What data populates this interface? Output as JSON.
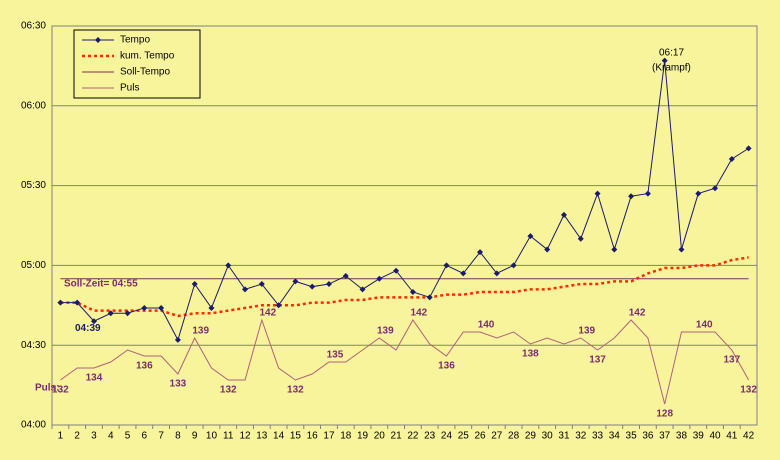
{
  "chart_data": {
    "type": "line",
    "categories": [
      "1",
      "2",
      "3",
      "4",
      "5",
      "6",
      "7",
      "8",
      "9",
      "10",
      "11",
      "12",
      "13",
      "14",
      "15",
      "16",
      "17",
      "18",
      "19",
      "20",
      "21",
      "22",
      "23",
      "24",
      "25",
      "26",
      "27",
      "28",
      "29",
      "30",
      "31",
      "32",
      "33",
      "34",
      "35",
      "36",
      "37",
      "38",
      "39",
      "40",
      "41",
      "42"
    ],
    "ylim": [
      240,
      390
    ],
    "yticks": [
      {
        "value": 240,
        "label": "04:00"
      },
      {
        "value": 270,
        "label": "04:30"
      },
      {
        "value": 300,
        "label": "05:00"
      },
      {
        "value": 330,
        "label": "05:30"
      },
      {
        "value": 360,
        "label": "06:00"
      },
      {
        "value": 390,
        "label": "06:30"
      }
    ],
    "y2lim": [
      124.5,
      191
    ],
    "grid": true,
    "legend": "top-left",
    "series": [
      {
        "name": "Tempo",
        "color": "#1a1a6e",
        "style": "solid-diamond",
        "values": [
          286,
          286,
          279,
          282,
          282,
          284,
          284,
          272,
          293,
          284,
          300,
          291,
          293,
          285,
          294,
          292,
          293,
          296,
          291,
          295,
          298,
          290,
          288,
          300,
          297,
          305,
          297,
          300,
          311,
          306,
          319,
          310,
          327,
          306,
          326,
          327,
          377,
          306,
          327,
          329,
          340,
          344
        ]
      },
      {
        "name": "kum. Tempo",
        "color": "#ff2a00",
        "style": "dotted",
        "values": [
          286,
          286,
          283,
          283,
          283,
          283,
          283,
          281,
          282,
          282,
          283,
          284,
          285,
          285,
          285,
          286,
          286,
          287,
          287,
          288,
          288,
          288,
          288,
          289,
          289,
          290,
          290,
          290,
          291,
          291,
          292,
          293,
          293,
          294,
          294,
          297,
          299,
          299,
          300,
          300,
          302,
          303
        ]
      },
      {
        "name": "Soll-Tempo",
        "color": "#803050",
        "style": "solid",
        "values": [
          295,
          295,
          295,
          295,
          295,
          295,
          295,
          295,
          295,
          295,
          295,
          295,
          295,
          295,
          295,
          295,
          295,
          295,
          295,
          295,
          295,
          295,
          295,
          295,
          295,
          295,
          295,
          295,
          295,
          295,
          295,
          295,
          295,
          295,
          295,
          295,
          295,
          295,
          295,
          295,
          295,
          295
        ]
      },
      {
        "name": "Puls",
        "color": "#b0607a",
        "style": "solid",
        "axis": "y2",
        "values": [
          132,
          134,
          134,
          135,
          137,
          136,
          136,
          133,
          139,
          134,
          132,
          132,
          142,
          134,
          132,
          133,
          135,
          135,
          137,
          139,
          137,
          142,
          138,
          136,
          140,
          140,
          139,
          140,
          138,
          139,
          138,
          139,
          137,
          139,
          142,
          139,
          128,
          140,
          140,
          140,
          137,
          132
        ],
        "value_labels": [
          "132",
          null,
          "134",
          null,
          null,
          "136",
          null,
          "133",
          "139",
          null,
          "132",
          null,
          "142",
          null,
          "132",
          null,
          "135",
          null,
          null,
          "139",
          null,
          "142",
          null,
          "136",
          null,
          "140",
          null,
          null,
          "138",
          null,
          null,
          "139",
          "137",
          null,
          "142",
          null,
          "128",
          null,
          "140",
          null,
          "137",
          "132"
        ]
      }
    ],
    "annotations": [
      "Soll-Zeit= 04:55",
      "04:39",
      "06:17",
      "(Krampf)",
      "Puls:"
    ]
  }
}
